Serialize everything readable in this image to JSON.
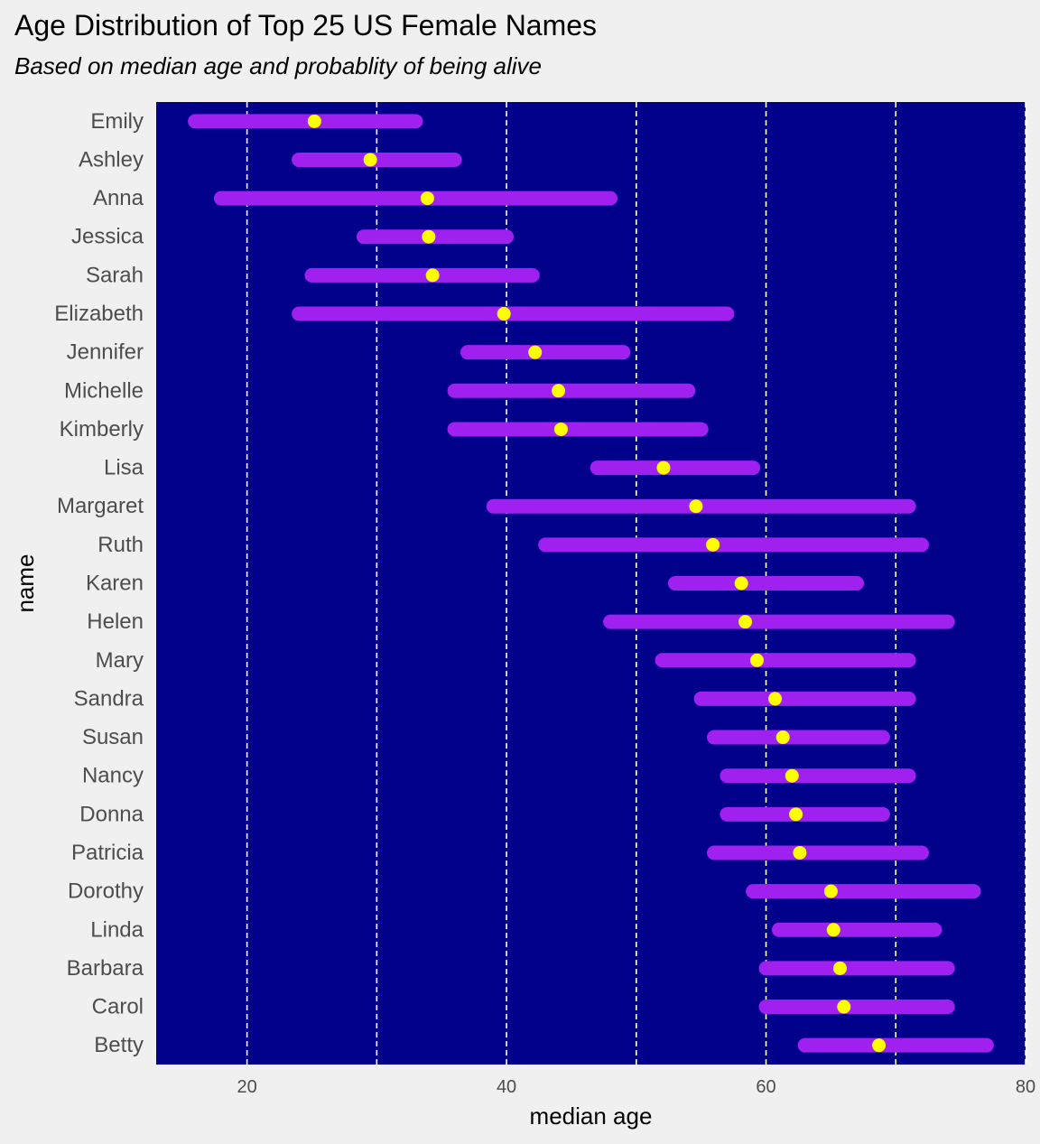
{
  "title": "Age Distribution of Top 25 US Female Names",
  "subtitle": "Based on median age and probablity of being alive",
  "colors": {
    "page_background": "#f0f0f0",
    "panel_background": "#00008b",
    "range_bar": "#a020f0",
    "median_point": "#ffff00",
    "gridline": "#ffffff"
  },
  "chart_data": {
    "type": "dot-range",
    "xlabel": "median age",
    "ylabel": "name",
    "xlim": [
      13,
      80
    ],
    "xticks": [
      20,
      40,
      60,
      80
    ],
    "grid": {
      "x_major": true,
      "x_minor": true,
      "style": "dashed",
      "y": false
    },
    "legend": "none",
    "names": [
      "Emily",
      "Ashley",
      "Anna",
      "Jessica",
      "Sarah",
      "Elizabeth",
      "Jennifer",
      "Michelle",
      "Kimberly",
      "Lisa",
      "Margaret",
      "Ruth",
      "Karen",
      "Helen",
      "Mary",
      "Sandra",
      "Susan",
      "Nancy",
      "Donna",
      "Patricia",
      "Dorothy",
      "Linda",
      "Barbara",
      "Carol",
      "Betty"
    ],
    "q25": [
      16,
      24,
      18,
      29,
      25,
      24,
      37,
      36,
      36,
      47,
      39,
      43,
      53,
      48,
      52,
      55,
      56,
      57,
      57,
      56,
      59,
      61,
      60,
      60,
      63
    ],
    "q75": [
      33,
      36,
      48,
      40,
      42,
      57,
      49,
      54,
      55,
      59,
      71,
      72,
      67,
      74,
      71,
      71,
      69,
      71,
      69,
      72,
      76,
      73,
      74,
      74,
      77
    ],
    "median": [
      25.2,
      29.5,
      33.9,
      34.0,
      34.3,
      39.8,
      42.2,
      44.0,
      44.2,
      52.1,
      54.6,
      55.9,
      58.1,
      58.4,
      59.3,
      60.7,
      61.3,
      62.0,
      62.3,
      62.6,
      65.0,
      65.2,
      65.7,
      66.0,
      68.7
    ]
  }
}
